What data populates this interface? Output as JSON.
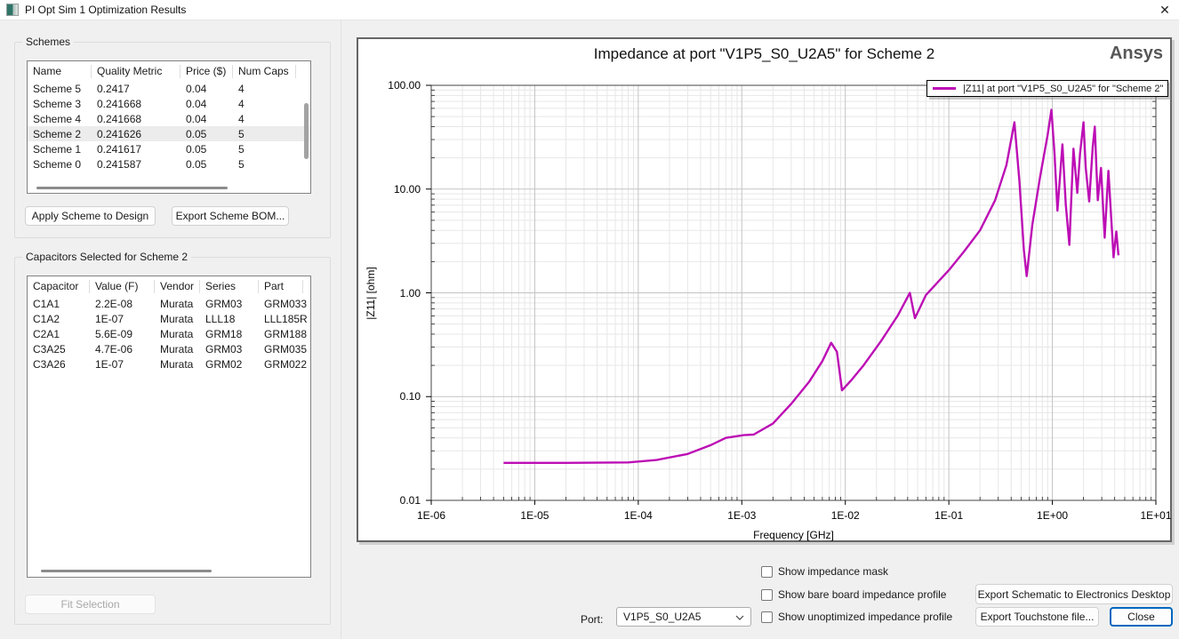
{
  "window": {
    "title": "PI Opt Sim 1 Optimization Results",
    "close_glyph": "✕"
  },
  "schemes": {
    "group_label": "Schemes",
    "columns": [
      "Name",
      "Quality Metric",
      "Price ($)",
      "Num Caps"
    ],
    "rows": [
      [
        "Scheme 5",
        "0.2417",
        "0.04",
        "4"
      ],
      [
        "Scheme 3",
        "0.241668",
        "0.04",
        "4"
      ],
      [
        "Scheme 4",
        "0.241668",
        "0.04",
        "4"
      ],
      [
        "Scheme 2",
        "0.241626",
        "0.05",
        "5"
      ],
      [
        "Scheme 1",
        "0.241617",
        "0.05",
        "5"
      ],
      [
        "Scheme 0",
        "0.241587",
        "0.05",
        "5"
      ]
    ],
    "selected_row": "Scheme 2",
    "apply_button": "Apply Scheme to Design",
    "export_button": "Export Scheme BOM..."
  },
  "capacitors": {
    "group_label": "Capacitors Selected for Scheme 2",
    "columns": [
      "Capacitor",
      "Value (F)",
      "Vendor",
      "Series",
      "Part"
    ],
    "rows": [
      [
        "C1A1",
        "2.2E-08",
        "Murata",
        "GRM03",
        "GRM033"
      ],
      [
        "C1A2",
        "1E-07",
        "Murata",
        "LLL18",
        "LLL185R"
      ],
      [
        "C2A1",
        "5.6E-09",
        "Murata",
        "GRM18",
        "GRM188"
      ],
      [
        "C3A25",
        "4.7E-06",
        "Murata",
        "GRM03",
        "GRM035"
      ],
      [
        "C3A26",
        "1E-07",
        "Murata",
        "GRM02",
        "GRM022"
      ]
    ],
    "fit_button": "Fit Selection"
  },
  "chart_data": {
    "type": "line",
    "title": "Impedance at port \"V1P5_S0_U2A5\" for Scheme 2",
    "brand": "Ansys",
    "xlabel": "Frequency [GHz]",
    "ylabel": "|Z11| [ohm]",
    "x_scale": "log",
    "y_scale": "log",
    "xlim": [
      1e-06,
      10
    ],
    "ylim": [
      0.01,
      100
    ],
    "x_ticks": [
      "1E-06",
      "1E-05",
      "1E-04",
      "1E-03",
      "1E-02",
      "1E-01",
      "1E+00",
      "1E+01"
    ],
    "y_ticks": [
      "100.00",
      "10.00",
      "1.00",
      "0.10",
      "0.01"
    ],
    "grid": true,
    "legend_position": "top-right",
    "line_color": "#bc0eb5",
    "series": [
      {
        "name": "|Z11| at port \"V1P5_S0_U2A5\" for \"Scheme 2\"",
        "points": [
          [
            5e-06,
            0.023
          ],
          [
            2e-05,
            0.023
          ],
          [
            8e-05,
            0.0232
          ],
          [
            0.00015,
            0.0245
          ],
          [
            0.0003,
            0.028
          ],
          [
            0.0005,
            0.034
          ],
          [
            0.0007,
            0.04
          ],
          [
            0.00105,
            0.0425
          ],
          [
            0.0013,
            0.043
          ],
          [
            0.002,
            0.055
          ],
          [
            0.003,
            0.085
          ],
          [
            0.0045,
            0.14
          ],
          [
            0.006,
            0.22
          ],
          [
            0.0073,
            0.33
          ],
          [
            0.0083,
            0.27
          ],
          [
            0.0093,
            0.115
          ],
          [
            0.0115,
            0.145
          ],
          [
            0.015,
            0.2
          ],
          [
            0.022,
            0.34
          ],
          [
            0.032,
            0.6
          ],
          [
            0.042,
            1.0
          ],
          [
            0.047,
            0.57
          ],
          [
            0.06,
            0.95
          ],
          [
            0.08,
            1.3
          ],
          [
            0.1,
            1.65
          ],
          [
            0.14,
            2.5
          ],
          [
            0.2,
            4.0
          ],
          [
            0.28,
            7.8
          ],
          [
            0.36,
            17
          ],
          [
            0.43,
            44
          ],
          [
            0.48,
            12
          ],
          [
            0.53,
            2.6
          ],
          [
            0.565,
            1.45
          ],
          [
            0.64,
            4.5
          ],
          [
            0.76,
            13
          ],
          [
            0.9,
            33
          ],
          [
            0.98,
            58
          ],
          [
            1.05,
            22
          ],
          [
            1.12,
            6.2
          ],
          [
            1.19,
            14
          ],
          [
            1.25,
            27
          ],
          [
            1.35,
            7
          ],
          [
            1.46,
            2.9
          ],
          [
            1.53,
            9
          ],
          [
            1.6,
            24.5
          ],
          [
            1.68,
            14
          ],
          [
            1.74,
            9.2
          ],
          [
            1.85,
            22
          ],
          [
            2.0,
            44
          ],
          [
            2.1,
            16
          ],
          [
            2.27,
            7.6
          ],
          [
            2.45,
            25
          ],
          [
            2.57,
            40
          ],
          [
            2.68,
            14
          ],
          [
            2.75,
            7.8
          ],
          [
            2.95,
            16
          ],
          [
            3.2,
            3.4
          ],
          [
            3.48,
            15
          ],
          [
            3.9,
            2.2
          ],
          [
            4.15,
            3.9
          ],
          [
            4.35,
            2.3
          ]
        ]
      }
    ]
  },
  "controls": {
    "port_label": "Port:",
    "port_value": "V1P5_S0_U2A5",
    "checkboxes": [
      {
        "label": "Show impedance mask",
        "checked": false
      },
      {
        "label": "Show bare board impedance profile",
        "checked": false
      },
      {
        "label": "Show unoptimized impedance profile",
        "checked": false
      }
    ],
    "export_schematic_button": "Export Schematic to Electronics Desktop",
    "export_touchstone_button": "Export Touchstone file...",
    "close_button": "Close"
  }
}
